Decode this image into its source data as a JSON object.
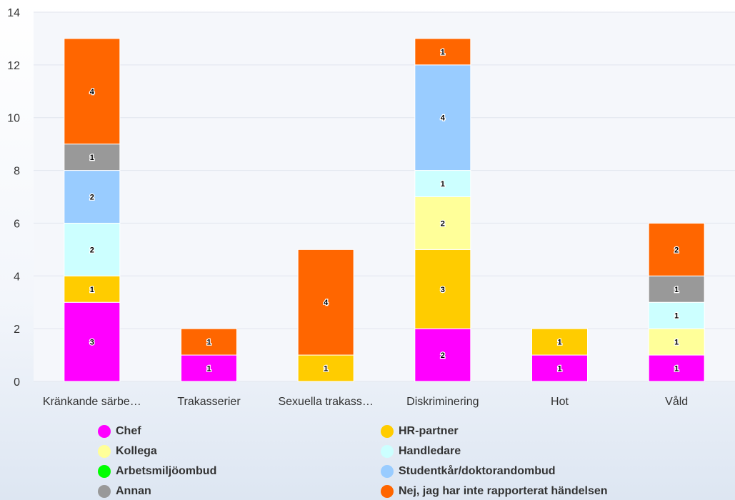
{
  "chart_data": {
    "type": "bar",
    "stacked": true,
    "categories": [
      "Kränkande särbe…",
      "Trakasserier",
      "Sexuella trakass…",
      "Diskriminering",
      "Hot",
      "Våld"
    ],
    "ylim": [
      0,
      14
    ],
    "yticks": [
      0,
      2,
      4,
      6,
      8,
      10,
      12,
      14
    ],
    "grid": true,
    "legend_position": "bottom",
    "series": [
      {
        "name": "Chef",
        "color": "#ff00ff",
        "values": [
          3,
          1,
          0,
          2,
          1,
          1
        ]
      },
      {
        "name": "HR-partner",
        "color": "#ffcc00",
        "values": [
          1,
          0,
          1,
          3,
          1,
          0
        ]
      },
      {
        "name": "Kollega",
        "color": "#ffff99",
        "values": [
          0,
          0,
          0,
          2,
          0,
          1
        ]
      },
      {
        "name": "Handledare",
        "color": "#ccffff",
        "values": [
          2,
          0,
          0,
          1,
          0,
          1
        ]
      },
      {
        "name": "Arbetsmiljöombud",
        "color": "#00ff00",
        "values": [
          0,
          0,
          0,
          0,
          0,
          0
        ]
      },
      {
        "name": "Studentkår/doktorandombud",
        "color": "#99ccff",
        "values": [
          2,
          0,
          0,
          4,
          0,
          0
        ]
      },
      {
        "name": "Annan",
        "color": "#999999",
        "values": [
          1,
          0,
          0,
          0,
          0,
          1
        ]
      },
      {
        "name": "Nej, jag har inte rapporterat händelsen",
        "color": "#ff6600",
        "values": [
          4,
          1,
          4,
          1,
          0,
          2
        ]
      }
    ]
  }
}
